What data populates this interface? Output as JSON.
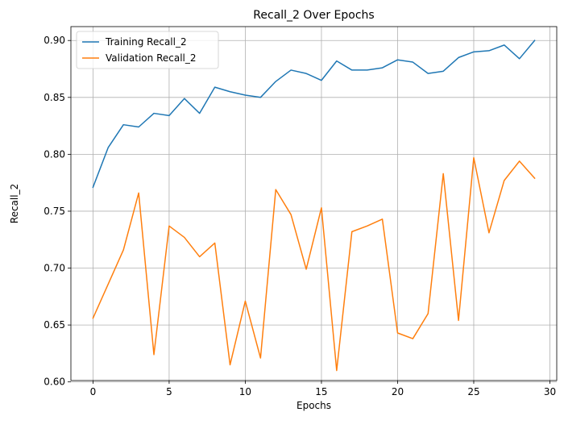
{
  "chart_data": {
    "type": "line",
    "title": "Recall_2 Over Epochs",
    "xlabel": "Epochs",
    "ylabel": "Recall_2",
    "xlim": [
      -1.45,
      30.45
    ],
    "ylim": [
      0.6012,
      0.9122
    ],
    "xticks": [
      0,
      5,
      10,
      15,
      20,
      25,
      30
    ],
    "xtick_labels": [
      "0",
      "5",
      "10",
      "15",
      "20",
      "25",
      "30"
    ],
    "yticks": [
      0.6,
      0.65,
      0.7,
      0.75,
      0.8,
      0.85,
      0.9
    ],
    "ytick_labels": [
      "0.60",
      "0.65",
      "0.70",
      "0.75",
      "0.80",
      "0.85",
      "0.90"
    ],
    "grid": true,
    "legend_position": "upper-left",
    "x": [
      0,
      1,
      2,
      3,
      4,
      5,
      6,
      7,
      8,
      9,
      10,
      11,
      12,
      13,
      14,
      15,
      16,
      17,
      18,
      19,
      20,
      21,
      22,
      23,
      24,
      25,
      26,
      27,
      28,
      29
    ],
    "series": [
      {
        "name": "Training Recall_2",
        "color": "#1f77b4",
        "values": [
          0.771,
          0.806,
          0.826,
          0.824,
          0.836,
          0.834,
          0.849,
          0.836,
          0.859,
          0.855,
          0.852,
          0.85,
          0.864,
          0.874,
          0.871,
          0.865,
          0.882,
          0.874,
          0.874,
          0.876,
          0.883,
          0.881,
          0.871,
          0.873,
          0.885,
          0.89,
          0.891,
          0.896,
          0.884,
          0.9
        ]
      },
      {
        "name": "Validation Recall_2",
        "color": "#ff7f0e",
        "values": [
          0.656,
          0.686,
          0.716,
          0.766,
          0.624,
          0.737,
          0.727,
          0.71,
          0.722,
          0.615,
          0.671,
          0.621,
          0.769,
          0.747,
          0.699,
          0.753,
          0.61,
          0.732,
          0.737,
          0.743,
          0.643,
          0.638,
          0.66,
          0.783,
          0.654,
          0.797,
          0.731,
          0.777,
          0.794,
          0.779
        ]
      }
    ]
  }
}
